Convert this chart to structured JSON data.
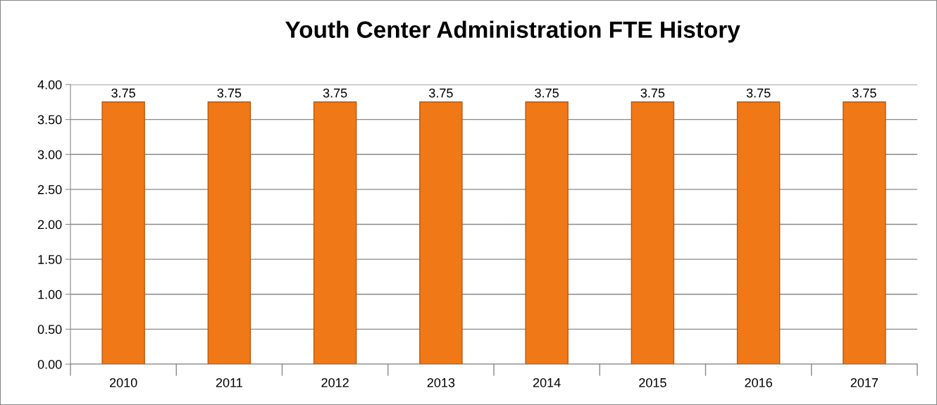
{
  "chart_data": {
    "type": "bar",
    "title": "Youth Center Administration FTE History",
    "categories": [
      "2010",
      "2011",
      "2012",
      "2013",
      "2014",
      "2015",
      "2016",
      "2017"
    ],
    "values": [
      3.75,
      3.75,
      3.75,
      3.75,
      3.75,
      3.75,
      3.75,
      3.75
    ],
    "color": "#f07817",
    "value_labels": [
      "3.75",
      "3.75",
      "3.75",
      "3.75",
      "3.75",
      "3.75",
      "3.75",
      "3.75"
    ],
    "ylim": [
      0,
      4
    ],
    "yticks": [
      {
        "value": 0,
        "label": "0.00"
      },
      {
        "value": 0.5,
        "label": "0.50"
      },
      {
        "value": 1,
        "label": "1.00"
      },
      {
        "value": 1.5,
        "label": "1.50"
      },
      {
        "value": 2,
        "label": "2.00"
      },
      {
        "value": 2.5,
        "label": "2.50"
      },
      {
        "value": 3,
        "label": "3.00"
      },
      {
        "value": 3.5,
        "label": "3.50"
      },
      {
        "value": 4,
        "label": "4.00"
      }
    ],
    "grid": "y"
  }
}
